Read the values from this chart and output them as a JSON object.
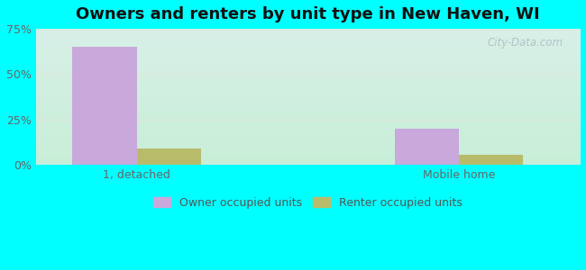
{
  "title": "Owners and renters by unit type in New Haven, WI",
  "categories": [
    "1, detached",
    "Mobile home"
  ],
  "owner_values": [
    65.0,
    20.0
  ],
  "renter_values": [
    9.0,
    5.5
  ],
  "owner_color": "#c9a8dc",
  "renter_color": "#b8bc6a",
  "ylim": [
    0,
    75
  ],
  "yticks": [
    0,
    25,
    50,
    75
  ],
  "yticklabels": [
    "0%",
    "25%",
    "50%",
    "75%"
  ],
  "bg_top": "#d8f0e8",
  "bg_bottom": "#c8eed8",
  "grid_color": "#dde8d8",
  "bar_width": 0.32,
  "title_fontsize": 13,
  "tick_fontsize": 9,
  "legend_fontsize": 9,
  "outer_bg": "#00ffff",
  "watermark": "City-Data.com",
  "group_positions": [
    0.5,
    2.1
  ]
}
